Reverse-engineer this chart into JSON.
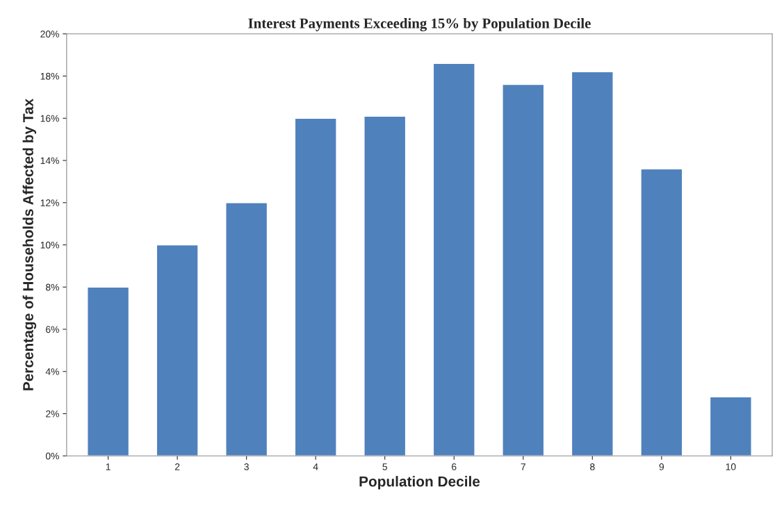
{
  "chart_data": {
    "type": "bar",
    "title": "Interest Payments Exceeding 15% by Population Decile",
    "xlabel": "Population Decile",
    "ylabel": "Percentage of Households Affected by Tax",
    "categories": [
      "1",
      "2",
      "3",
      "4",
      "5",
      "6",
      "7",
      "8",
      "9",
      "10"
    ],
    "values": [
      8.0,
      10.0,
      12.0,
      16.0,
      16.1,
      18.6,
      17.6,
      18.2,
      13.6,
      2.8
    ],
    "color": "#4f81bd",
    "ylim": [
      0,
      20
    ],
    "yticks": [
      {
        "value": 0,
        "label": "0%"
      },
      {
        "value": 2,
        "label": "2%"
      },
      {
        "value": 4,
        "label": "4%"
      },
      {
        "value": 6,
        "label": "6%"
      },
      {
        "value": 8,
        "label": "8%"
      },
      {
        "value": 10,
        "label": "10%"
      },
      {
        "value": 12,
        "label": "12%"
      },
      {
        "value": 14,
        "label": "14%"
      },
      {
        "value": 16,
        "label": "16%"
      },
      {
        "value": 18,
        "label": "18%"
      },
      {
        "value": 20,
        "label": "20%"
      }
    ],
    "grid": false
  }
}
